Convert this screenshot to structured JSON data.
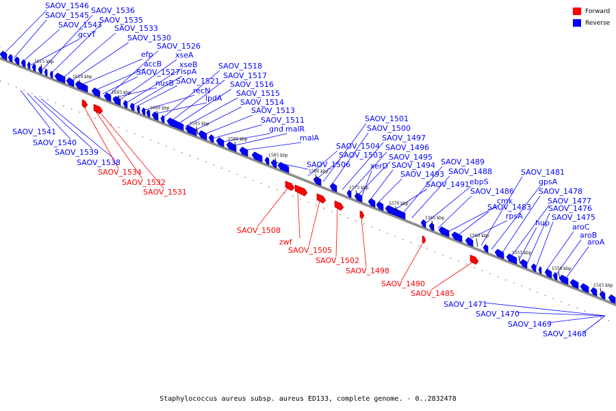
{
  "legend": [
    {
      "label": "Forward",
      "color": "#ff0000"
    },
    {
      "label": "Reverse",
      "color": "#0000ff"
    }
  ],
  "caption": "Staphylococcus aureus subsp. aureus ED133, complete genome. - 0..2832478",
  "colors": {
    "forward": "#ff0000",
    "reverse": "#0000ff",
    "backbone": "#888888"
  },
  "ticks": [
    "1615 kbp",
    "1610 kbp",
    "1605 kbp",
    "1600 kbp",
    "1595 kbp",
    "1590 kbp",
    "1585 kbp",
    "1580 kbp",
    "1575 kbp",
    "1570 kbp",
    "1565 kbp",
    "1560 kbp",
    "1555 kbp",
    "1550 kbp",
    "1545 kbp"
  ],
  "reverse_labels": [
    "SAOV_1546",
    "SAOV_1545",
    "SAOV_1543",
    "gcvT",
    "SAOV_1536",
    "SAOV_1535",
    "SAOV_1533",
    "SAOV_1530",
    "efp",
    "accB",
    "SAOV_1527",
    "nusB",
    "SAOV_1526",
    "xseA",
    "xseB",
    "ispA",
    "SAOV_1521",
    "recN",
    "lpdA",
    "SAOV_1518",
    "SAOV_1517",
    "SAOV_1516",
    "SAOV_1515",
    "SAOV_1514",
    "SAOV_1513",
    "SAOV_1511",
    "gnd",
    "malR",
    "malA",
    "SAOV_1506",
    "SAOV_1504",
    "SAOV_1503",
    "SAOV_1501",
    "SAOV_1500",
    "SAOV_1497",
    "SAOV_1496",
    "SAOV_1495",
    "xerD",
    "SAOV_1494",
    "SAOV_1493",
    "SAOV_1491",
    "SAOV_1489",
    "SAOV_1488",
    "ebpS",
    "SAOV_1486",
    "cmk",
    "SAOV_1483",
    "rpsA",
    "SAOV_1481",
    "gpsA",
    "SAOV_1478",
    "SAOV_1477",
    "hup",
    "SAOV_1476",
    "SAOV_1475",
    "aroC",
    "aroB",
    "aroA"
  ],
  "reverse_left_labels": [
    "SAOV_1541",
    "SAOV_1540",
    "SAOV_1539",
    "SAOV_1538"
  ],
  "reverse_bottom_labels": [
    "SAOV_1471",
    "SAOV_1470",
    "SAOV_1469",
    "SAOV_1468"
  ],
  "forward_labels": [
    "SAOV_1534",
    "SAOV_1532",
    "SAOV_1531",
    "SAOV_1508",
    "zwf",
    "SAOV_1505",
    "SAOV_1502",
    "SAOV_1498",
    "SAOV_1490",
    "SAOV_1485"
  ]
}
